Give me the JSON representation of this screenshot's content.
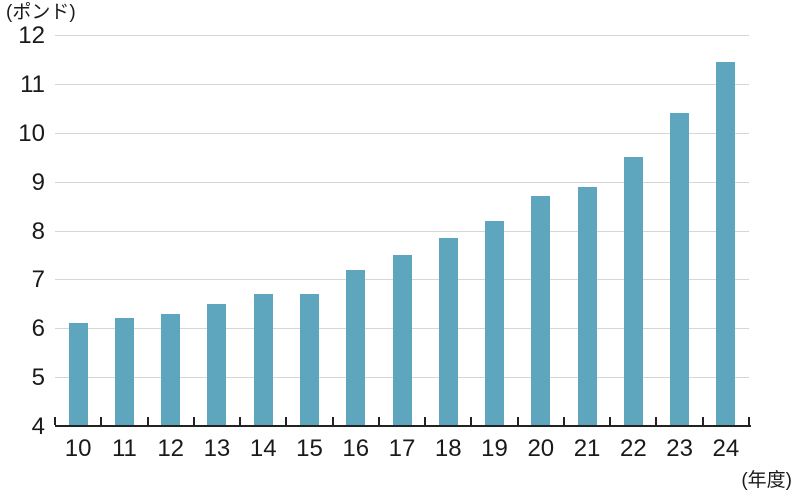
{
  "chart": {
    "unit_label": "(ポンド)",
    "x_axis_label": "(年度)"
  },
  "chart_data": {
    "type": "bar",
    "title": "",
    "unit_label": "(ポンド)",
    "xlabel": "(年度)",
    "ylabel": "(ポンド)",
    "categories": [
      "10",
      "11",
      "12",
      "13",
      "14",
      "15",
      "16",
      "17",
      "18",
      "19",
      "20",
      "21",
      "22",
      "23",
      "24"
    ],
    "values": [
      6.1,
      6.2,
      6.3,
      6.5,
      6.7,
      6.7,
      7.2,
      7.5,
      7.85,
      8.2,
      8.7,
      8.9,
      9.5,
      10.4,
      11.45
    ],
    "ylim": [
      4,
      12
    ],
    "yticks": [
      4,
      5,
      6,
      7,
      8,
      9,
      10,
      11,
      12
    ],
    "grid": "horizontal",
    "legend": "none",
    "colors": {
      "bar": "#5EA6BD",
      "gridline": "#D6D6D6",
      "axis": "#222222",
      "text": "#1A1A1A",
      "background": "#FFFFFF"
    }
  }
}
